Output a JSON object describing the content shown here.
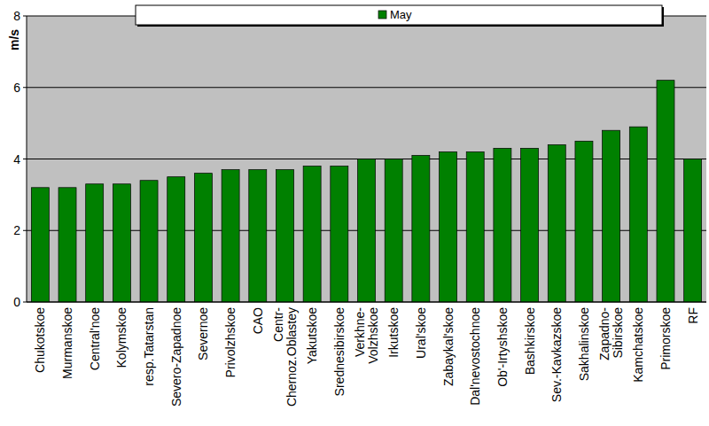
{
  "chart_data": {
    "type": "bar",
    "y_label": "m/s",
    "categories": [
      "Chukotskoe",
      "Murmanskoe",
      "Central'noe",
      "Kolymskoe",
      "resp.Tatarstan",
      "Severo-Zapadnoe",
      "Severnoe",
      "Privolzhskoe",
      "CAO",
      "Centr-Chernoz.Oblastey",
      "Yakutskoe",
      "Srednesibirskoe",
      "Verkhne-Volzhskoe",
      "Irkutskoe",
      "Ural'skoe",
      "Zabaykal'skoe",
      "Dal'nevostochnoe",
      "Ob'-Irtyshskoe",
      "Bashkirskoe",
      "Sev.-Kavkazskoe",
      "Sakhalinskoe",
      "Zapadno-Sibirskoe",
      "Kamchatskoe",
      "Primorskoe",
      "RF"
    ],
    "series": [
      {
        "name": "May",
        "color": "#008000",
        "values": [
          3.2,
          3.2,
          3.3,
          3.3,
          3.4,
          3.5,
          3.6,
          3.7,
          3.7,
          3.7,
          3.8,
          3.8,
          4.0,
          4.0,
          4.1,
          4.2,
          4.2,
          4.3,
          4.3,
          4.4,
          4.5,
          4.8,
          4.9,
          6.2,
          4.0
        ]
      }
    ],
    "ylim": [
      0,
      8
    ],
    "yticks": [
      0,
      2,
      4,
      6,
      8
    ],
    "grid": true,
    "legend": "top"
  }
}
